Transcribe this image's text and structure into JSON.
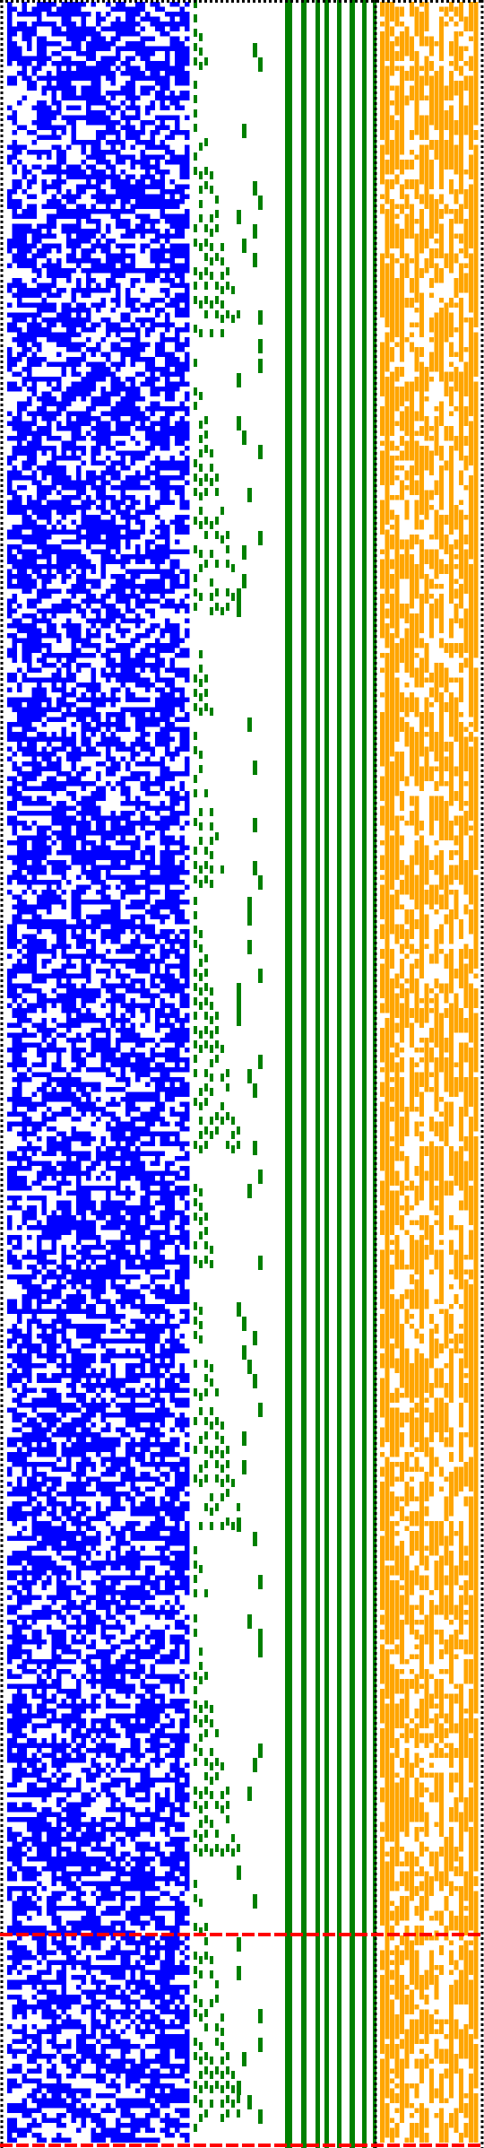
{
  "colors": {
    "background": "#ffffff",
    "register_a": "#0000ff",
    "carry_staircase": "#008000",
    "register_b": "#ffa500",
    "border": "#000000",
    "marker": "#ff0000"
  },
  "panels": [
    {
      "name": "blue-bit-field",
      "color_key": "register_a",
      "density": 0.5
    },
    {
      "name": "green-staircase",
      "color_key": "carry_staircase"
    },
    {
      "name": "orange-bit-field",
      "color_key": "register_b",
      "density": 0.55
    }
  ],
  "markers": {
    "style": "dashed",
    "count": 2
  }
}
